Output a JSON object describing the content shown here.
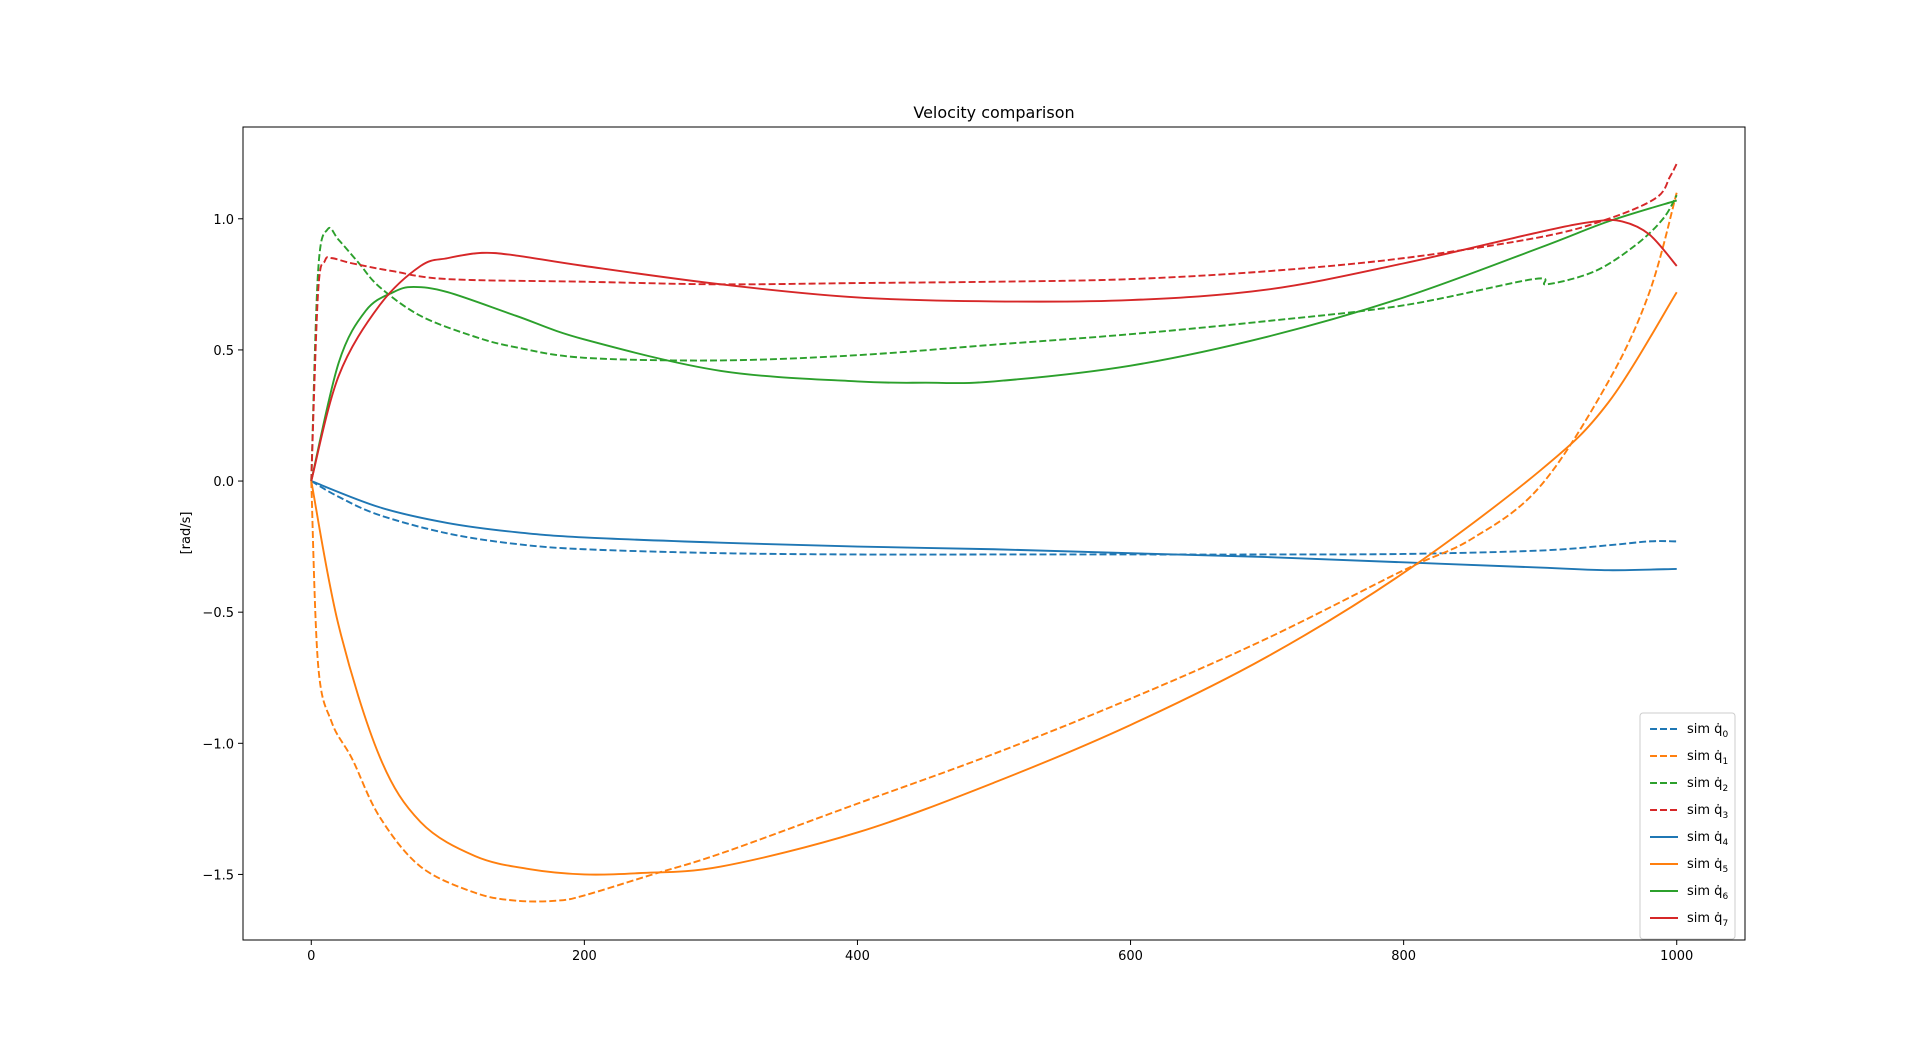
{
  "chart_data": {
    "type": "line",
    "title": "Velocity comparison",
    "xlabel": "",
    "ylabel": "[rad/s]",
    "xlim": [
      -50,
      1050
    ],
    "ylim": [
      -1.75,
      1.35
    ],
    "xticks": [
      0,
      200,
      400,
      600,
      800,
      1000
    ],
    "yticks": [
      -1.5,
      -1.0,
      -0.5,
      0.0,
      0.5,
      1.0
    ],
    "xtick_labels": [
      "0",
      "200",
      "400",
      "600",
      "800",
      "1000"
    ],
    "ytick_labels": [
      "−1.5",
      "−1.0",
      "−0.5",
      "0.0",
      "0.5",
      "1.0"
    ],
    "grid": false,
    "legend_position": "lower-right",
    "series": [
      {
        "name": "sim q̇₀",
        "legend_label": "sim q̇",
        "legend_sub": "0",
        "color": "#1f77b4",
        "style": "dashed",
        "x": [
          0,
          20,
          50,
          100,
          150,
          200,
          300,
          400,
          500,
          600,
          700,
          800,
          900,
          950,
          980,
          1000
        ],
        "y": [
          0.0,
          -0.06,
          -0.13,
          -0.2,
          -0.24,
          -0.26,
          -0.275,
          -0.28,
          -0.28,
          -0.28,
          -0.28,
          -0.278,
          -0.265,
          -0.245,
          -0.23,
          -0.23
        ]
      },
      {
        "name": "sim q̇₁",
        "legend_label": "sim q̇",
        "legend_sub": "1",
        "color": "#ff7f0e",
        "style": "dashed",
        "x": [
          0,
          5,
          15,
          30,
          50,
          80,
          120,
          150,
          180,
          200,
          250,
          300,
          400,
          500,
          600,
          700,
          800,
          850,
          900,
          950,
          980,
          1000
        ],
        "y": [
          0.0,
          -0.7,
          -0.92,
          -1.06,
          -1.28,
          -1.47,
          -1.57,
          -1.6,
          -1.6,
          -1.58,
          -1.5,
          -1.42,
          -1.23,
          -1.04,
          -0.83,
          -0.6,
          -0.34,
          -0.22,
          -0.02,
          0.38,
          0.72,
          1.1
        ]
      },
      {
        "name": "sim q̇₂",
        "legend_label": "sim q̇",
        "legend_sub": "2",
        "color": "#2ca02c",
        "style": "dashed",
        "x": [
          0,
          5,
          12,
          20,
          35,
          50,
          80,
          120,
          150,
          200,
          300,
          400,
          500,
          600,
          700,
          800,
          895,
          905,
          940,
          970,
          990,
          1000
        ],
        "y": [
          0.0,
          0.8,
          0.96,
          0.92,
          0.83,
          0.74,
          0.63,
          0.55,
          0.51,
          0.47,
          0.46,
          0.48,
          0.52,
          0.56,
          0.61,
          0.67,
          0.77,
          0.75,
          0.8,
          0.9,
          1.0,
          1.09
        ]
      },
      {
        "name": "sim q̇₃",
        "legend_label": "sim q̇",
        "legend_sub": "3",
        "color": "#d62728",
        "style": "dashed",
        "x": [
          0,
          5,
          10,
          15,
          30,
          60,
          100,
          200,
          300,
          400,
          500,
          600,
          700,
          800,
          900,
          950,
          985,
          995,
          1000
        ],
        "y": [
          0.0,
          0.72,
          0.84,
          0.85,
          0.83,
          0.8,
          0.77,
          0.76,
          0.75,
          0.755,
          0.76,
          0.77,
          0.8,
          0.85,
          0.93,
          1.0,
          1.08,
          1.16,
          1.21
        ]
      },
      {
        "name": "sim q̇₄",
        "legend_label": "sim q̇",
        "legend_sub": "4",
        "color": "#1f77b4",
        "style": "solid",
        "x": [
          0,
          50,
          100,
          150,
          200,
          300,
          400,
          500,
          600,
          700,
          800,
          900,
          950,
          1000
        ],
        "y": [
          0.0,
          -0.1,
          -0.16,
          -0.195,
          -0.215,
          -0.235,
          -0.25,
          -0.26,
          -0.275,
          -0.29,
          -0.31,
          -0.33,
          -0.34,
          -0.335
        ]
      },
      {
        "name": "sim q̇₅",
        "legend_label": "sim q̇",
        "legend_sub": "5",
        "color": "#ff7f0e",
        "style": "solid",
        "x": [
          0,
          20,
          50,
          80,
          120,
          160,
          200,
          240,
          300,
          400,
          500,
          600,
          700,
          800,
          900,
          950,
          1000
        ],
        "y": [
          0.0,
          -0.55,
          -1.05,
          -1.3,
          -1.43,
          -1.48,
          -1.5,
          -1.495,
          -1.47,
          -1.34,
          -1.15,
          -0.93,
          -0.67,
          -0.35,
          0.04,
          0.3,
          0.72
        ]
      },
      {
        "name": "sim q̇₆",
        "legend_label": "sim q̇",
        "legend_sub": "6",
        "color": "#2ca02c",
        "style": "solid",
        "x": [
          0,
          20,
          40,
          60,
          75,
          100,
          150,
          200,
          300,
          400,
          450,
          500,
          600,
          700,
          800,
          900,
          950,
          1000
        ],
        "y": [
          0.0,
          0.45,
          0.65,
          0.72,
          0.74,
          0.72,
          0.63,
          0.54,
          0.42,
          0.38,
          0.375,
          0.38,
          0.44,
          0.55,
          0.7,
          0.89,
          0.99,
          1.07
        ]
      },
      {
        "name": "sim q̇₇",
        "legend_label": "sim q̇",
        "legend_sub": "7",
        "color": "#d62728",
        "style": "solid",
        "x": [
          0,
          20,
          50,
          80,
          100,
          125,
          150,
          200,
          300,
          400,
          500,
          600,
          700,
          800,
          900,
          940,
          960,
          980,
          1000
        ],
        "y": [
          0.0,
          0.4,
          0.67,
          0.82,
          0.85,
          0.87,
          0.86,
          0.82,
          0.75,
          0.7,
          0.685,
          0.69,
          0.73,
          0.83,
          0.95,
          0.99,
          0.99,
          0.94,
          0.82
        ]
      }
    ]
  }
}
